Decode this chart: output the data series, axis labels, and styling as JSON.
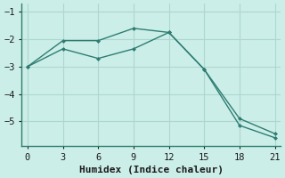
{
  "series1_x": [
    0,
    3,
    6,
    9,
    12,
    15,
    18,
    21
  ],
  "series1_y": [
    -3.0,
    -2.05,
    -2.05,
    -1.6,
    -1.75,
    -3.1,
    -5.15,
    -5.6
  ],
  "series2_x": [
    0,
    3,
    6,
    9,
    12,
    15,
    18,
    21
  ],
  "series2_y": [
    -3.0,
    -2.35,
    -2.7,
    -2.35,
    -1.75,
    -3.1,
    -4.9,
    -5.45
  ],
  "line_color": "#2e7d72",
  "bg_color": "#cceee8",
  "grid_color": "#aed6d0",
  "xlabel": "Humidex (Indice chaleur)",
  "xlim": [
    -0.5,
    21.5
  ],
  "ylim": [
    -5.9,
    -0.7
  ],
  "xticks": [
    0,
    3,
    6,
    9,
    12,
    15,
    18,
    21
  ],
  "yticks": [
    -5,
    -4,
    -3,
    -2,
    -1
  ],
  "xlabel_fontsize": 8,
  "tick_fontsize": 7.5
}
